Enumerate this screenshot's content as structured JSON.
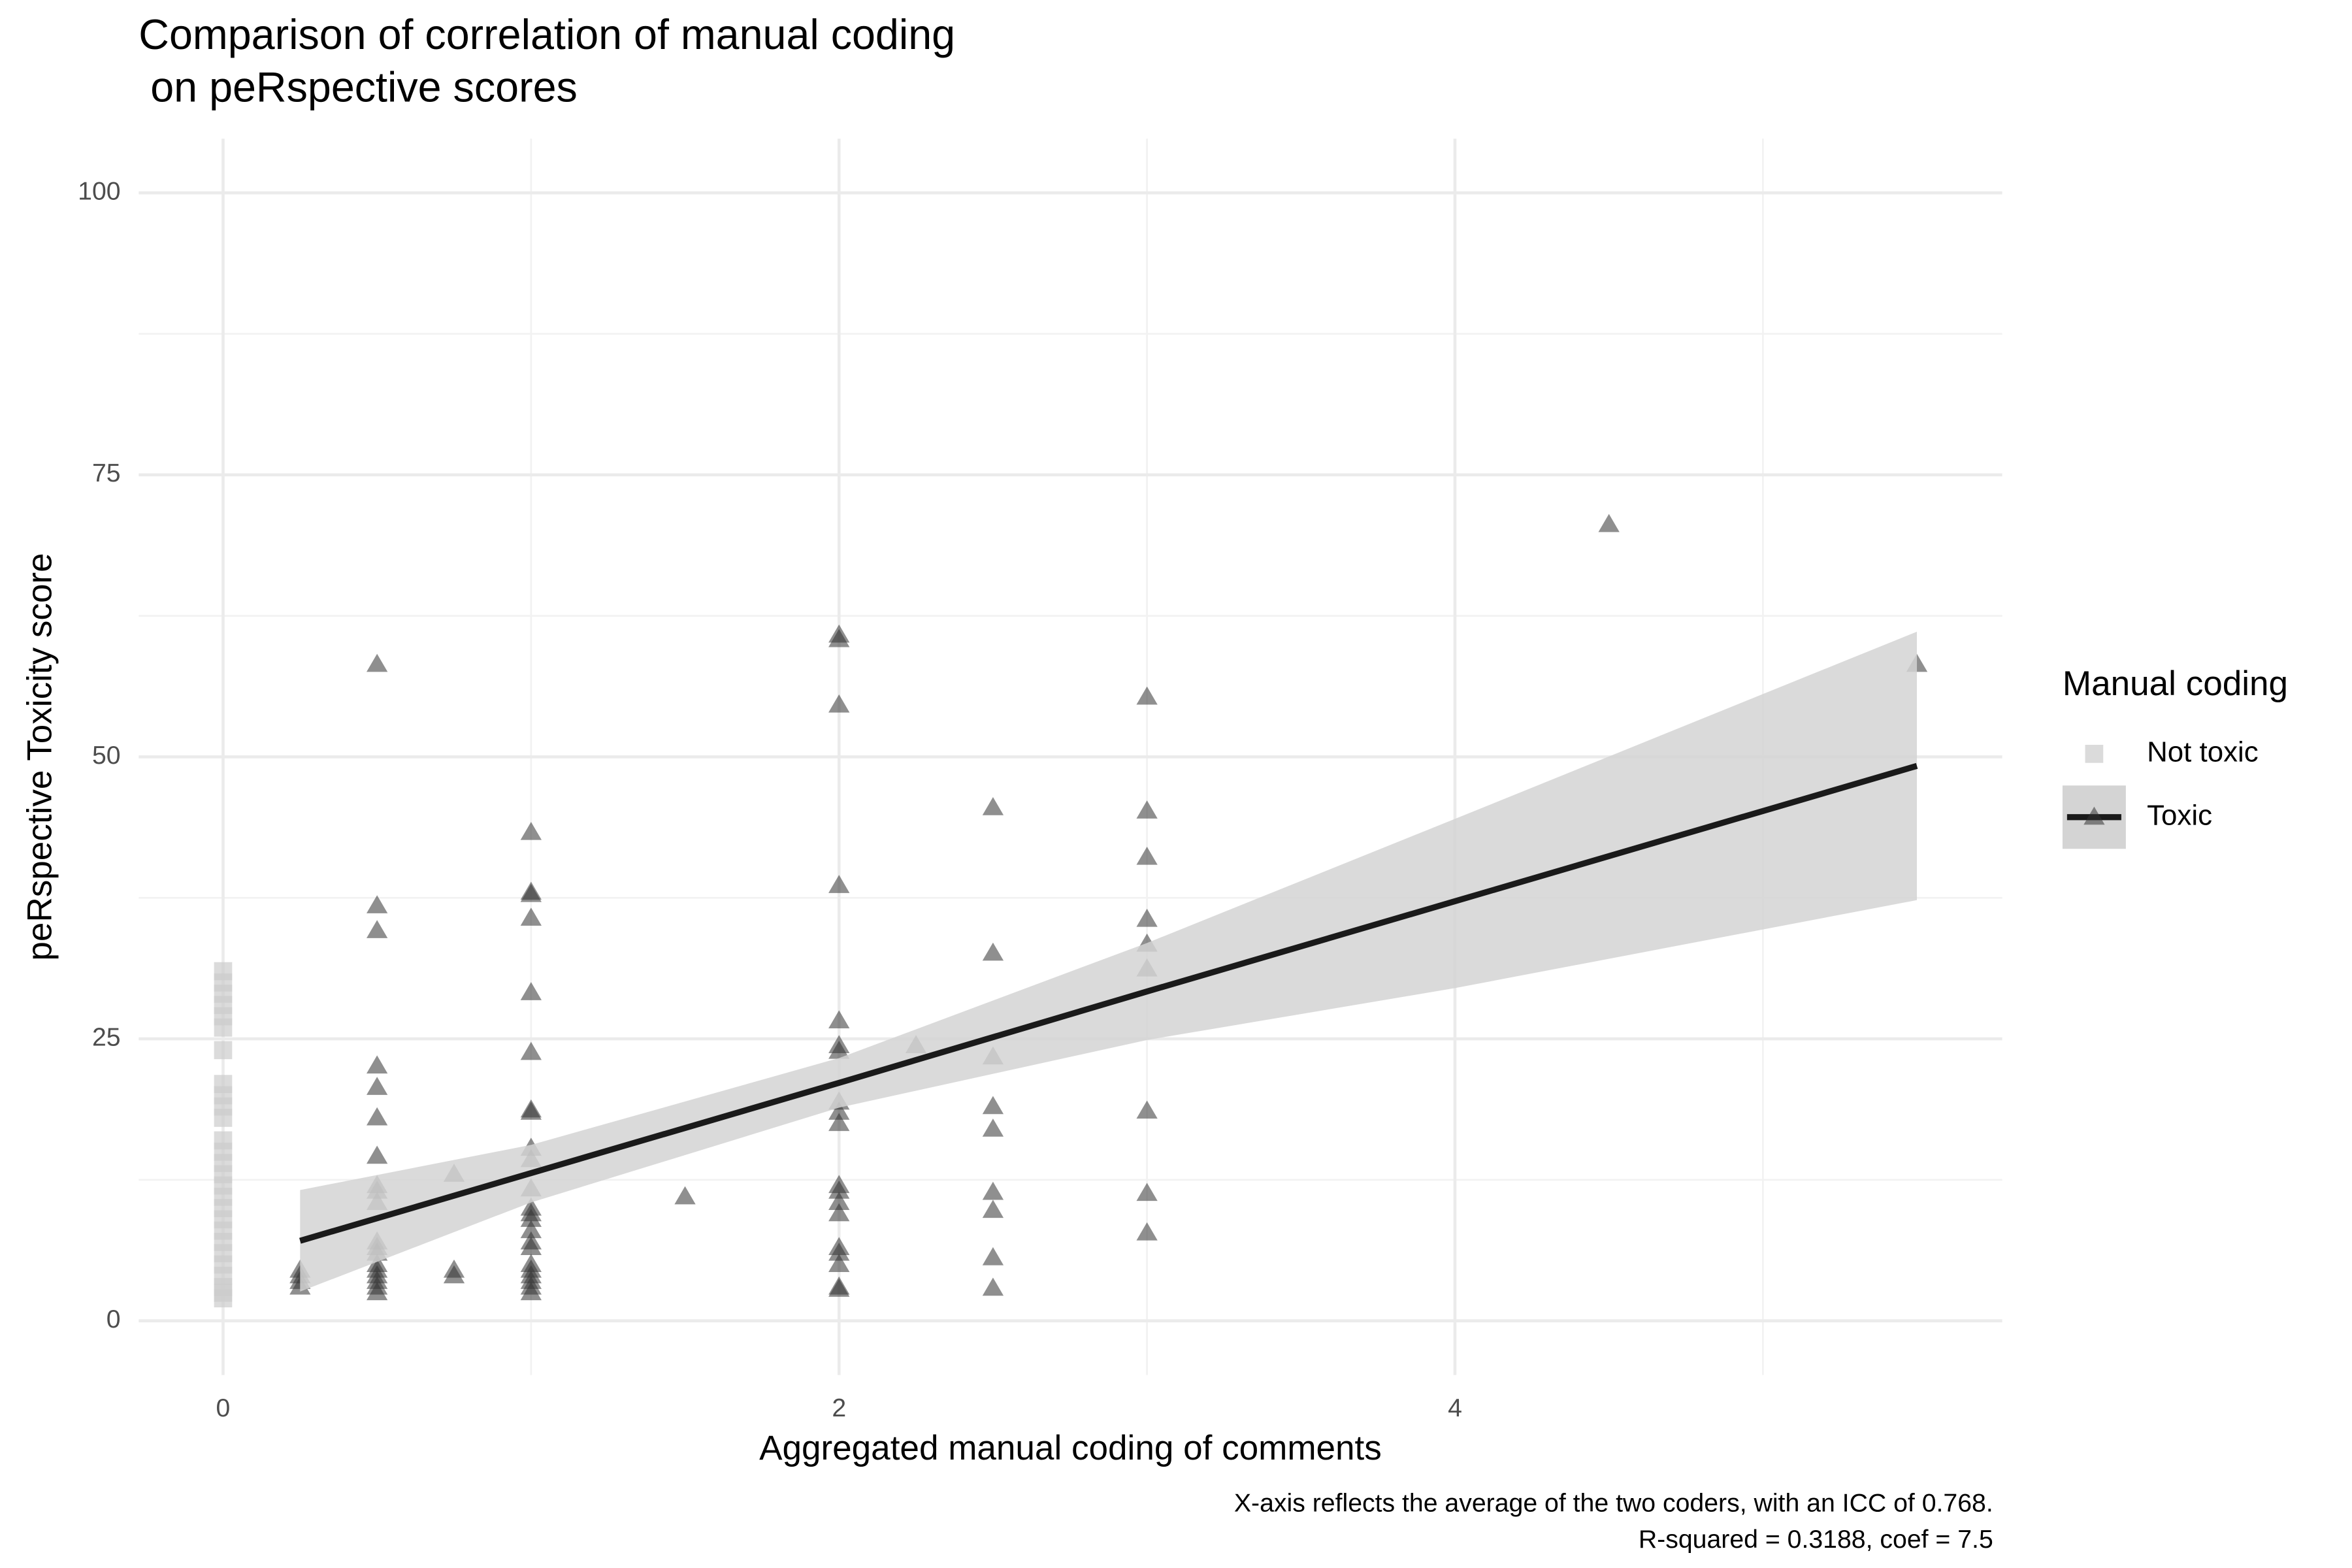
{
  "chart_data": {
    "type": "scatter",
    "title": [
      "Comparison of correlation of manual coding",
      " on peRspective scores"
    ],
    "x_label": "Aggregated manual coding of comments",
    "y_label": "peRspective Toxicity score",
    "caption": [
      "X-axis reflects the average of the two coders, with an ICC of 0.768.",
      "R-squared = 0.3188, coef = 7.5"
    ],
    "legend_title": "Manual coding",
    "legend_position": "right",
    "grid": true,
    "xlim": [
      -0.274,
      5.777
    ],
    "ylim": [
      -4.8,
      104.8
    ],
    "xticks": [
      0,
      2,
      4
    ],
    "yticks": [
      0,
      25,
      50,
      75,
      100
    ],
    "series": [
      {
        "name": "Not toxic",
        "color": "#cccccc",
        "marker": "square",
        "x": [
          0,
          0,
          0,
          0,
          0,
          0,
          0,
          0,
          0,
          0,
          0,
          0,
          0,
          0,
          0,
          0,
          0,
          0,
          0,
          0,
          0,
          0,
          0,
          0,
          0,
          0,
          0
        ],
        "y": [
          31,
          30,
          29,
          28,
          27,
          26,
          24,
          21,
          20,
          19,
          18,
          16,
          15,
          14,
          13,
          12,
          11,
          10,
          9,
          8,
          7,
          6,
          5,
          4,
          3,
          2.5,
          2
        ]
      },
      {
        "name": "Toxic",
        "color": "#333333",
        "marker": "triangle",
        "x": [
          0.25,
          0.25,
          0.25,
          0.25,
          0.5,
          0.5,
          0.5,
          0.5,
          0.5,
          0.5,
          0.5,
          0.5,
          0.5,
          0.5,
          0.5,
          0.5,
          0.5,
          0.5,
          0.5,
          0.5,
          0.5,
          0.5,
          0.5,
          0.75,
          0.75,
          0.75,
          1,
          1,
          1,
          1,
          1,
          1,
          1,
          1,
          1,
          1,
          1,
          1,
          1,
          1,
          1,
          1,
          1,
          1,
          1,
          1,
          1,
          1,
          1,
          1.5,
          2,
          2,
          2,
          2,
          2,
          2,
          2,
          2,
          2,
          2,
          2,
          2,
          2,
          2,
          2,
          2,
          2,
          2,
          2,
          2.25,
          2.5,
          2.5,
          2.5,
          2.5,
          2.5,
          2.5,
          2.5,
          2.5,
          2.5,
          3,
          3,
          3,
          3,
          3,
          3,
          3,
          3,
          3,
          4.5,
          5.5
        ],
        "y": [
          3,
          3.5,
          4,
          4.5,
          58.2,
          36.8,
          34.6,
          22.6,
          20.7,
          18,
          14.6,
          12,
          11.5,
          10.5,
          7,
          6.5,
          6,
          5,
          4.5,
          4,
          3.5,
          3,
          2.5,
          13,
          4.5,
          4,
          43.3,
          38,
          37.8,
          35.7,
          29.1,
          23.8,
          18.7,
          18.5,
          15.3,
          14.3,
          11.7,
          10,
          9.5,
          9,
          8,
          7,
          6.5,
          5,
          4.5,
          4,
          3.5,
          3,
          2.5,
          11,
          60.8,
          60.4,
          54.6,
          38.6,
          26.6,
          24.4,
          23.9,
          19.4,
          18.5,
          17.5,
          12,
          11.5,
          10.5,
          9.5,
          6.5,
          6,
          5,
          3,
          2.8,
          24.4,
          45.5,
          32.6,
          23.4,
          19,
          17,
          11.4,
          9.8,
          5.6,
          2.9,
          55.3,
          45.2,
          41.1,
          35.6,
          33.4,
          31.2,
          18.6,
          11.3,
          7.8,
          70.6,
          58.2
        ]
      }
    ],
    "fit": {
      "color": "#1a1a1a",
      "band_color": "#d4d4d4",
      "x": [
        0.25,
        1,
        2,
        3,
        4,
        5.5
      ],
      "y": [
        7.1,
        13.1,
        21.1,
        29.2,
        37.2,
        49.2
      ],
      "lower": [
        2.6,
        10.5,
        18.9,
        24.9,
        29.5,
        37.3
      ],
      "upper": [
        11.6,
        15.6,
        23.3,
        33.5,
        44.5,
        61.1
      ]
    }
  }
}
